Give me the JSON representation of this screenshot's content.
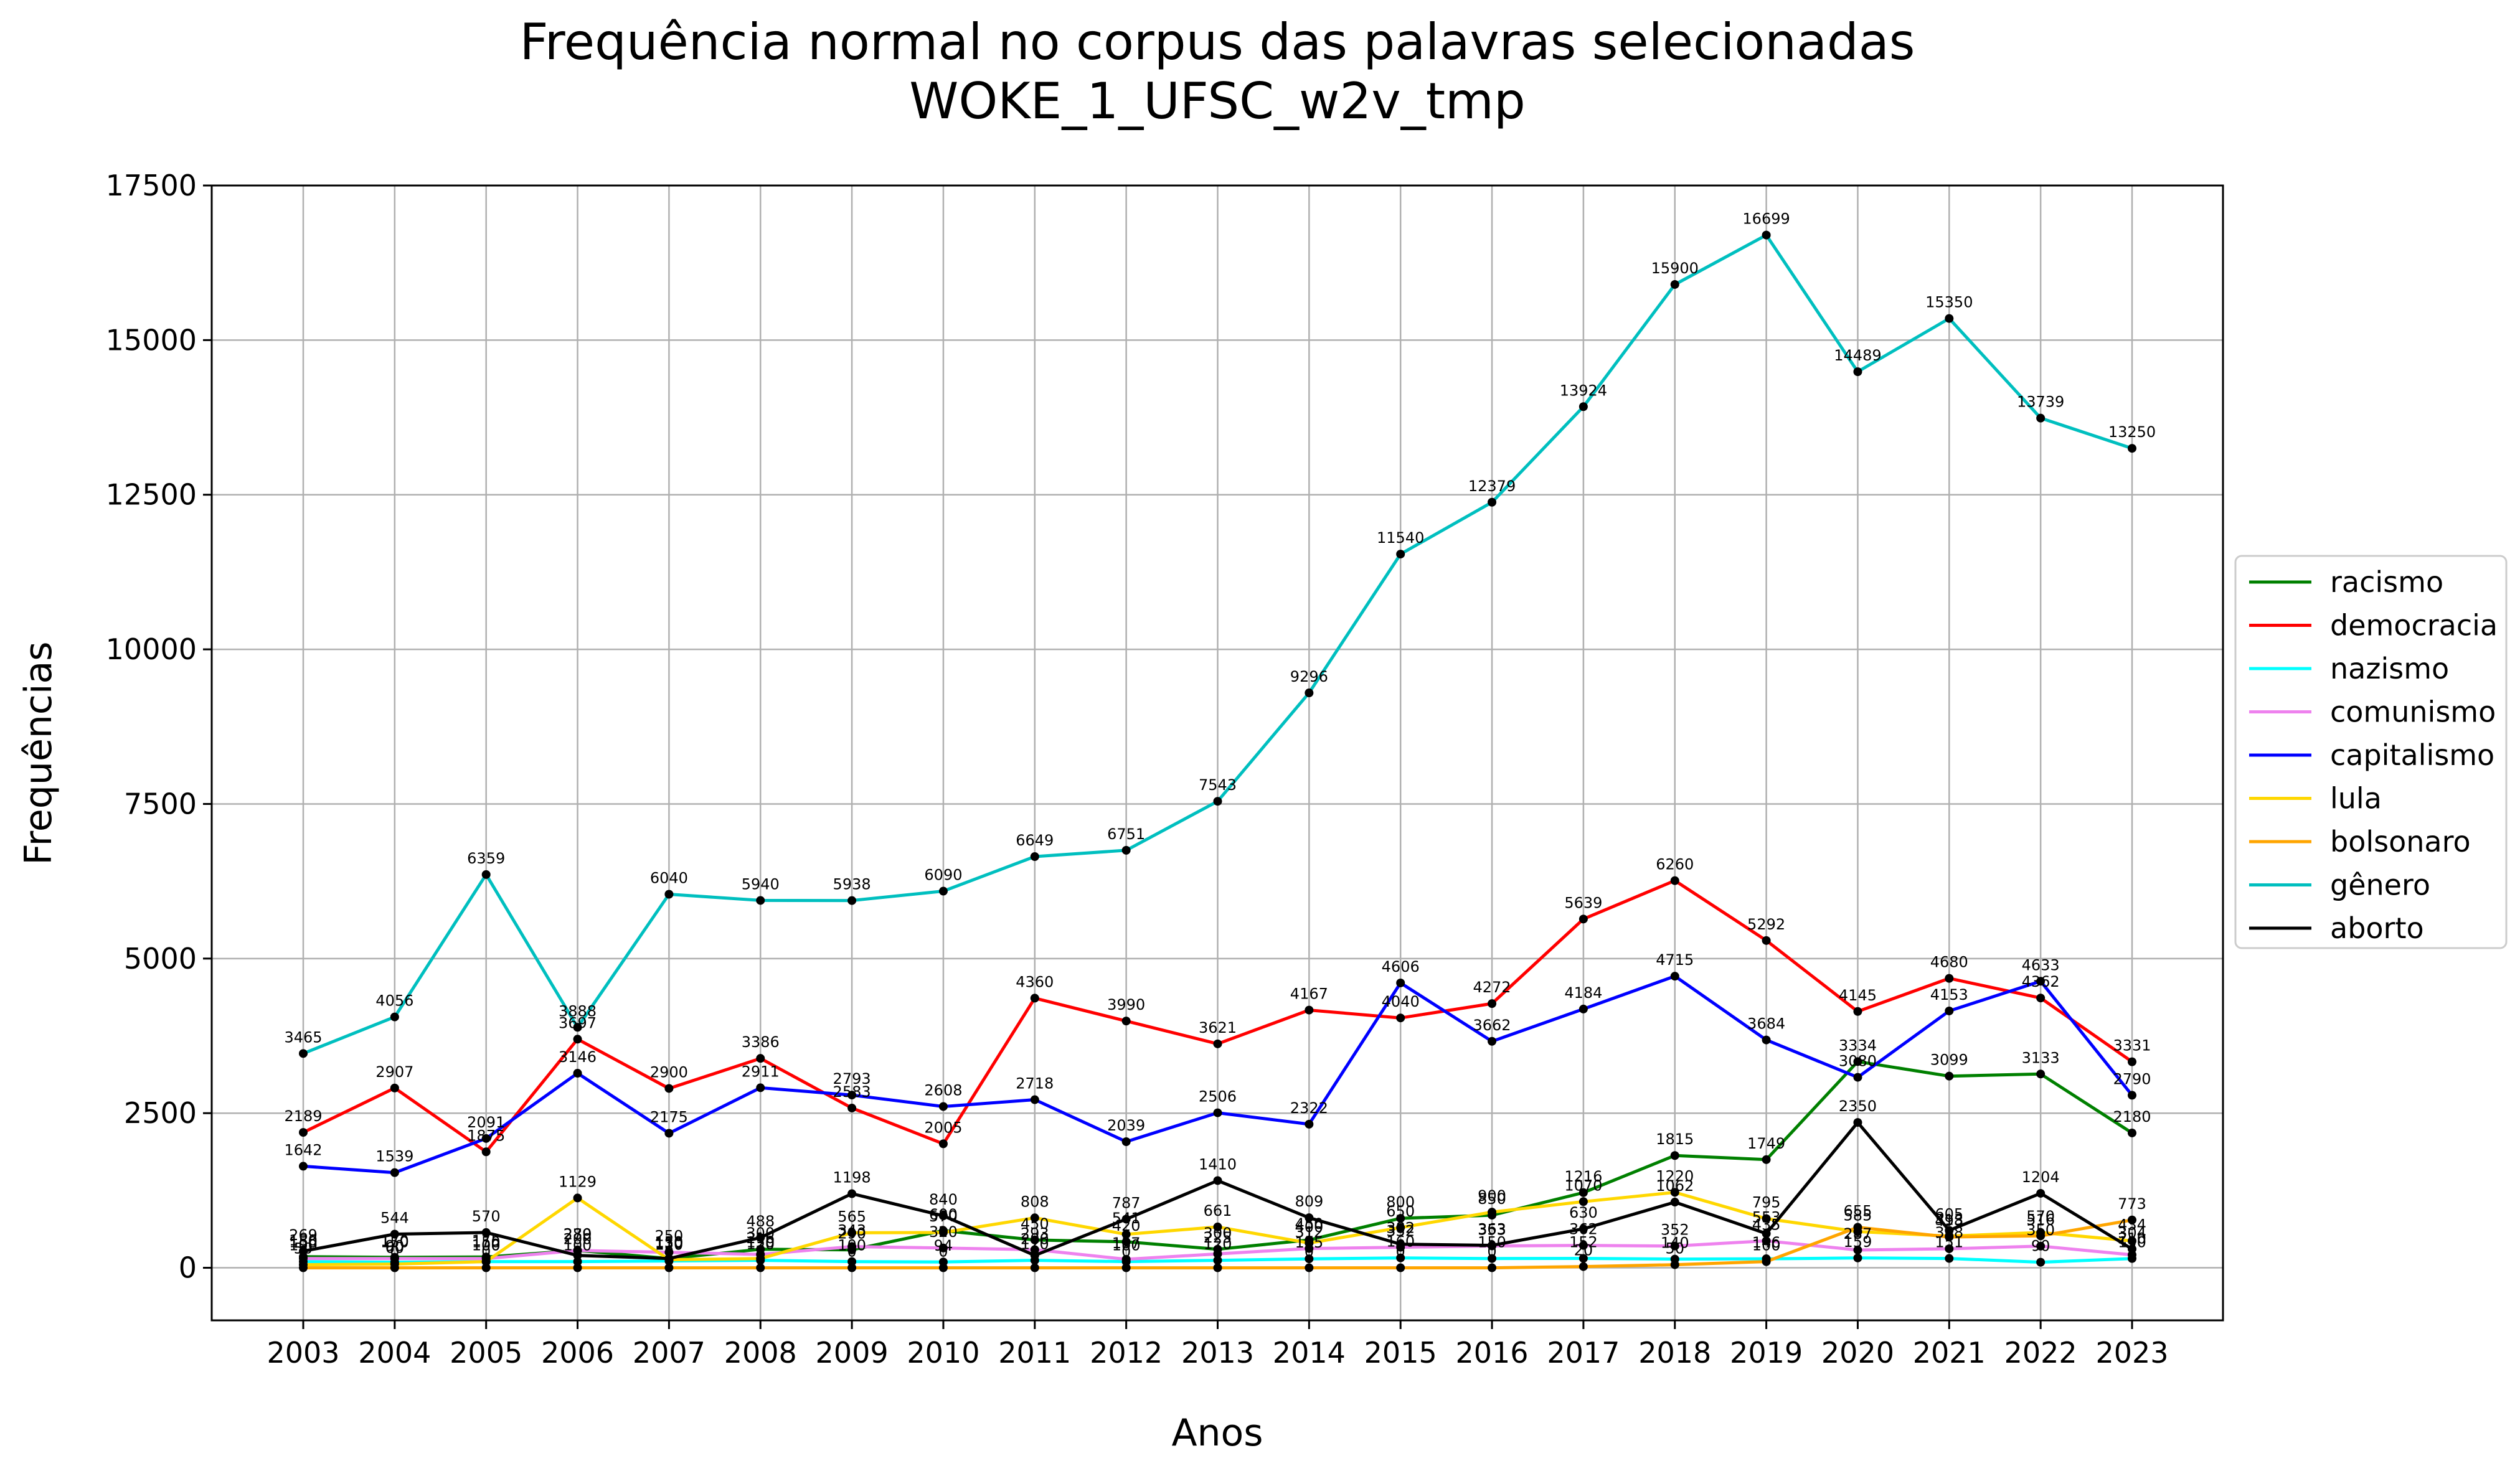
{
  "chart_data": {
    "type": "line",
    "title": "Frequência normal no corpus das palavras selecionadas",
    "subtitle": "WOKE_1_UFSC_w2v_tmp",
    "xlabel": "Anos",
    "ylabel": "Frequências",
    "x": [
      "2003",
      "2004",
      "2005",
      "2006",
      "2007",
      "2008",
      "2009",
      "2010",
      "2011",
      "2012",
      "2013",
      "2014",
      "2015",
      "2016",
      "2017",
      "2018",
      "2019",
      "2020",
      "2021",
      "2022",
      "2023"
    ],
    "ylim": [
      -850,
      17500
    ],
    "yticks": [
      0,
      2500,
      5000,
      7500,
      10000,
      12500,
      15000,
      17500
    ],
    "grid": true,
    "legend_position": "right",
    "series": [
      {
        "name": "racismo",
        "color": "#008000",
        "values": [
          180,
          170,
          175,
          280,
          150,
          300,
          290,
          600,
          450,
          420,
          300,
          450,
          800,
          850,
          1216,
          1815,
          1749,
          3334,
          3099,
          3133,
          2180
        ]
      },
      {
        "name": "democracia",
        "color": "#ff0000",
        "values": [
          2189,
          2907,
          1875,
          3697,
          2900,
          3386,
          2583,
          2005,
          4360,
          3990,
          3621,
          4167,
          4040,
          4272,
          5639,
          6260,
          5292,
          4145,
          4680,
          4362,
          3331
        ]
      },
      {
        "name": "nazismo",
        "color": "#00ffff",
        "values": [
          100,
          90,
          100,
          100,
          110,
          120,
          100,
          94,
          120,
          100,
          120,
          145,
          160,
          150,
          152,
          140,
          146,
          159,
          151,
          90,
          150
        ]
      },
      {
        "name": "comunismo",
        "color": "#ee82ee",
        "values": [
          150,
          150,
          150,
          279,
          250,
          216,
          343,
          320,
          293,
          137,
          225,
          312,
          332,
          353,
          362,
          352,
          435,
          287,
          308,
          350,
          210
        ]
      },
      {
        "name": "capitalismo",
        "color": "#0000ff",
        "values": [
          1642,
          1539,
          2091,
          3146,
          2175,
          2911,
          2793,
          2608,
          2718,
          2039,
          2506,
          2322,
          4606,
          3662,
          4184,
          4715,
          3684,
          3080,
          4153,
          4633,
          2790
        ]
      },
      {
        "name": "lula",
        "color": "#ffd700",
        "values": [
          50,
          60,
          100,
          1129,
          130,
          150,
          565,
          570,
          808,
          541,
          661,
          400,
          650,
          900,
          1070,
          1220,
          795,
          585,
          513,
          570,
          434
        ]
      },
      {
        "name": "bolsonaro",
        "color": "#ffa500",
        "values": [
          0,
          0,
          0,
          0,
          0,
          0,
          0,
          0,
          0,
          0,
          0,
          0,
          0,
          0,
          20,
          50,
          100,
          655,
          498,
          516,
          773
        ]
      },
      {
        "name": "gênero",
        "color": "#00bfbf",
        "values": [
          3465,
          4056,
          6359,
          3888,
          6040,
          5940,
          5938,
          6090,
          6649,
          6751,
          7543,
          9296,
          11540,
          12379,
          13924,
          15900,
          16699,
          14489,
          15350,
          13739,
          13250
        ]
      },
      {
        "name": "aborto",
        "color": "#000000",
        "values": [
          269,
          544,
          570,
          200,
          150,
          488,
          1198,
          840,
          200,
          787,
          1410,
          809,
          382,
          363,
          630,
          1062,
          553,
          2350,
          605,
          1204,
          304
        ]
      }
    ]
  }
}
